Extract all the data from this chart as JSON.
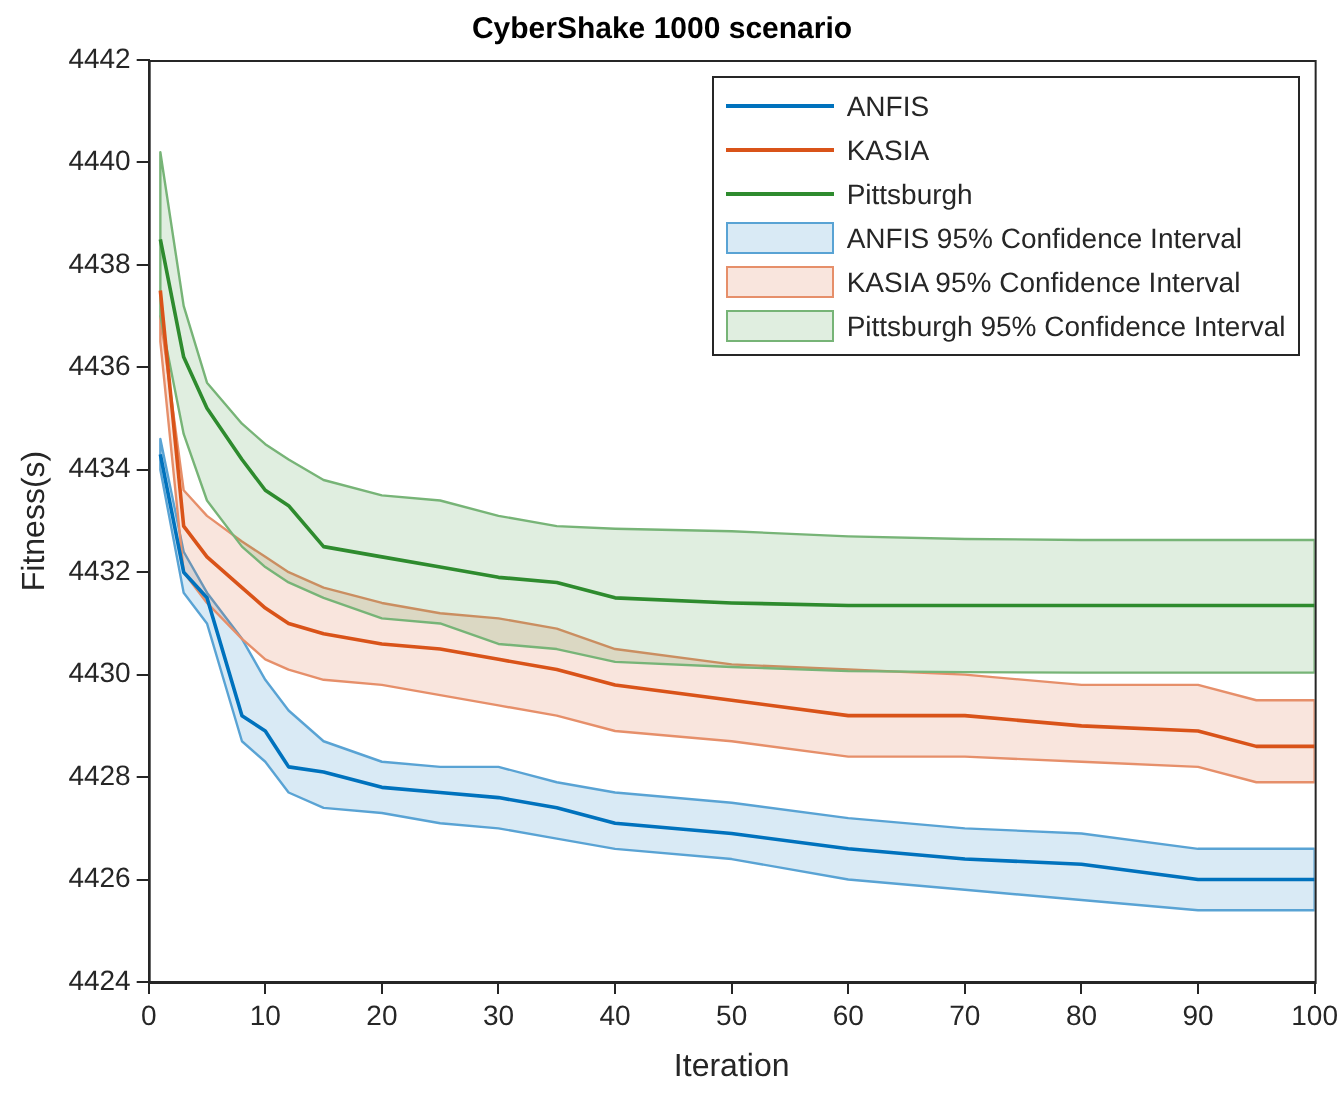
{
  "chart_data": {
    "type": "line",
    "title": "CyberShake 1000 scenario",
    "xlabel": "Iteration",
    "ylabel": "Fitness(s)",
    "x": [
      1,
      3,
      5,
      8,
      10,
      12,
      15,
      20,
      25,
      30,
      35,
      40,
      50,
      60,
      70,
      80,
      90,
      95,
      100
    ],
    "xlim": [
      0,
      100
    ],
    "xticks": [
      0,
      10,
      20,
      30,
      40,
      50,
      60,
      70,
      80,
      90,
      100
    ],
    "ylim": [
      4424,
      4442
    ],
    "yticks": [
      4424,
      4426,
      4428,
      4430,
      4432,
      4434,
      4436,
      4438,
      4440,
      4442
    ],
    "grid": false,
    "legend": "top right",
    "marker": "none",
    "line_style": "solid",
    "annotations": [
      "ANFIS 95% Confidence Interval",
      "KASIA 95% Confidence Interval",
      "Pittsburgh 95% Confidence Interval"
    ],
    "series": [
      {
        "name": "ANFIS",
        "color": "#0072bd",
        "values": [
          4434.3,
          4432.0,
          4431.5,
          4429.2,
          4428.9,
          4428.2,
          4428.1,
          4427.8,
          4427.7,
          4427.6,
          4427.4,
          4427.1,
          4426.9,
          4426.6,
          4426.4,
          4426.3,
          4426.0,
          4426.0,
          4426.0
        ],
        "lower": [
          4434.0,
          4431.6,
          4431.0,
          4428.7,
          4428.3,
          4427.7,
          4427.4,
          4427.3,
          4427.1,
          4427.0,
          4426.8,
          4426.6,
          4426.4,
          4426.0,
          4425.8,
          4425.6,
          4425.4,
          4425.4,
          4425.4
        ],
        "upper": [
          4434.6,
          4432.4,
          4431.6,
          4430.7,
          4429.9,
          4429.3,
          4428.7,
          4428.3,
          4428.2,
          4428.2,
          4427.9,
          4427.7,
          4427.5,
          4427.2,
          4427.0,
          4426.9,
          4426.6,
          4426.6,
          4426.6
        ]
      },
      {
        "name": "KASIA",
        "color": "#d95319",
        "values": [
          4437.5,
          4432.9,
          4432.3,
          4431.7,
          4431.3,
          4431.0,
          4430.8,
          4430.6,
          4430.5,
          4430.3,
          4430.1,
          4429.8,
          4429.5,
          4429.2,
          4429.2,
          4429.0,
          4428.9,
          4428.6,
          4428.6
        ],
        "lower": [
          4436.5,
          4432.0,
          4431.4,
          4430.7,
          4430.3,
          4430.1,
          4429.9,
          4429.8,
          4429.6,
          4429.4,
          4429.2,
          4428.9,
          4428.7,
          4428.4,
          4428.4,
          4428.3,
          4428.2,
          4427.9,
          4427.9
        ],
        "upper": [
          4437.0,
          4433.6,
          4433.1,
          4432.6,
          4432.3,
          4432.0,
          4431.7,
          4431.4,
          4431.2,
          4431.1,
          4430.9,
          4430.5,
          4430.2,
          4430.1,
          4430.0,
          4429.8,
          4429.8,
          4429.5,
          4429.5
        ]
      },
      {
        "name": "Pittsburgh",
        "color": "#2e8b2e",
        "values": [
          4438.5,
          4436.2,
          4435.2,
          4434.2,
          4433.6,
          4433.3,
          4432.5,
          4432.3,
          4432.1,
          4431.9,
          4431.8,
          4431.5,
          4431.4,
          4431.35,
          4431.35,
          4431.35,
          4431.35,
          4431.35,
          4431.35
        ],
        "lower": [
          4437.0,
          4434.7,
          4433.4,
          4432.5,
          4432.1,
          4431.8,
          4431.5,
          4431.1,
          4431.0,
          4430.6,
          4430.5,
          4430.25,
          4430.15,
          4430.07,
          4430.05,
          4430.04,
          4430.04,
          4430.04,
          4430.04
        ],
        "upper": [
          4440.2,
          4437.2,
          4435.7,
          4434.9,
          4434.5,
          4434.2,
          4433.8,
          4433.5,
          4433.4,
          4433.1,
          4432.9,
          4432.85,
          4432.8,
          4432.7,
          4432.65,
          4432.63,
          4432.63,
          4432.63,
          4432.63
        ]
      }
    ]
  }
}
